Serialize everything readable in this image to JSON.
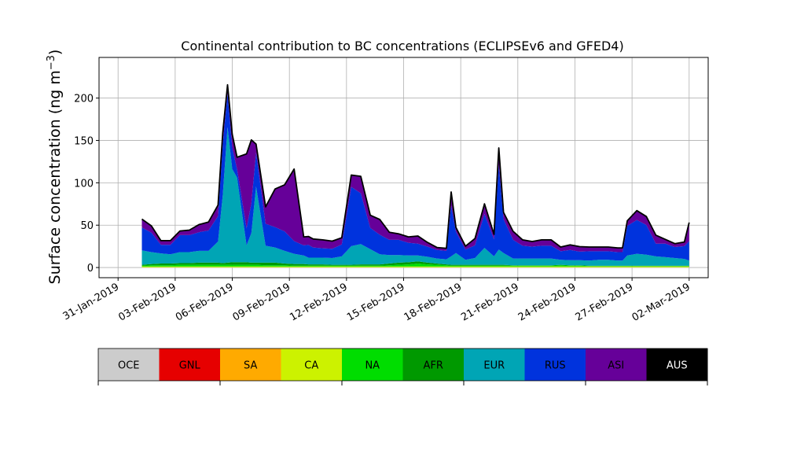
{
  "chart_data": {
    "type": "area",
    "stacked": true,
    "title": "Continental contribution to BC concentrations (ECLIPSEv6 and GFED4)",
    "ylabel": "Surface concentration (ng m",
    "ylabel_superscript": "−3",
    "ylabel_suffix": ")",
    "xlabel": "",
    "xlim": [
      "2019-01-30",
      "2019-03-03"
    ],
    "ylim": [
      -12,
      248
    ],
    "grid": true,
    "x_ticks": [
      "2019-01-31",
      "2019-02-03",
      "2019-02-06",
      "2019-02-09",
      "2019-02-12",
      "2019-02-15",
      "2019-02-18",
      "2019-02-21",
      "2019-02-24",
      "2019-02-27",
      "2019-03-02"
    ],
    "x_tick_labels": [
      "31-Jan-2019",
      "03-Feb-2019",
      "06-Feb-2019",
      "09-Feb-2019",
      "12-Feb-2019",
      "15-Feb-2019",
      "18-Feb-2019",
      "21-Feb-2019",
      "24-Feb-2019",
      "27-Feb-2019",
      "02-Mar-2019"
    ],
    "y_ticks": [
      0,
      50,
      100,
      150,
      200
    ],
    "y_tick_labels": [
      "0",
      "50",
      "100",
      "150",
      "200"
    ],
    "x": [
      "2019-02-01 06:00",
      "2019-02-01 18:00",
      "2019-02-02 06:00",
      "2019-02-02 18:00",
      "2019-02-03 06:00",
      "2019-02-03 18:00",
      "2019-02-04 06:00",
      "2019-02-04 18:00",
      "2019-02-05 06:00",
      "2019-02-05 12:00",
      "2019-02-05 18:00",
      "2019-02-06 00:00",
      "2019-02-06 06:00",
      "2019-02-06 18:00",
      "2019-02-07 00:00",
      "2019-02-07 06:00",
      "2019-02-07 18:00",
      "2019-02-08 06:00",
      "2019-02-08 18:00",
      "2019-02-09 06:00",
      "2019-02-09 18:00",
      "2019-02-10 00:00",
      "2019-02-10 06:00",
      "2019-02-10 18:00",
      "2019-02-11 06:00",
      "2019-02-11 18:00",
      "2019-02-12 06:00",
      "2019-02-12 18:00",
      "2019-02-13 06:00",
      "2019-02-13 18:00",
      "2019-02-14 06:00",
      "2019-02-14 18:00",
      "2019-02-15 06:00",
      "2019-02-15 18:00",
      "2019-02-16 06:00",
      "2019-02-16 18:00",
      "2019-02-17 06:00",
      "2019-02-17 12:00",
      "2019-02-17 18:00",
      "2019-02-18 06:00",
      "2019-02-18 18:00",
      "2019-02-19 06:00",
      "2019-02-19 18:00",
      "2019-02-20 00:00",
      "2019-02-20 06:00",
      "2019-02-20 18:00",
      "2019-02-21 06:00",
      "2019-02-21 18:00",
      "2019-02-22 06:00",
      "2019-02-22 18:00",
      "2019-02-23 06:00",
      "2019-02-23 18:00",
      "2019-02-24 06:00",
      "2019-02-24 18:00",
      "2019-02-25 06:00",
      "2019-02-25 18:00",
      "2019-02-26 06:00",
      "2019-02-26 12:00",
      "2019-02-26 18:00",
      "2019-02-27 06:00",
      "2019-02-27 18:00",
      "2019-02-28 06:00",
      "2019-02-28 18:00",
      "2019-03-01 06:00",
      "2019-03-01 18:00",
      "2019-03-02 00:00"
    ],
    "series": [
      {
        "name": "OCE",
        "color": "#cccccc",
        "values": [
          0.2,
          0.2,
          0.2,
          0.2,
          0.2,
          0.2,
          0.2,
          0.2,
          0.2,
          0.2,
          0.2,
          0.2,
          0.2,
          0.2,
          0.2,
          0.2,
          0.2,
          0.2,
          0.2,
          0.2,
          0.2,
          0.2,
          0.2,
          0.2,
          0.2,
          0.2,
          0.2,
          0.2,
          0.2,
          0.2,
          0.2,
          0.2,
          0.2,
          0.2,
          0.2,
          0.2,
          0.2,
          0.2,
          0.2,
          0.2,
          0.2,
          0.2,
          0.2,
          0.2,
          0.2,
          0.2,
          0.2,
          0.2,
          0.2,
          0.2,
          0.2,
          0.2,
          0.2,
          0.2,
          0.2,
          0.2,
          0.2,
          0.2,
          0.2,
          0.2,
          0.2,
          0.2,
          0.2,
          0.2,
          0.2,
          0.2
        ]
      },
      {
        "name": "GNL",
        "color": "#e60000",
        "values": [
          0,
          0,
          0,
          0,
          0,
          0,
          0,
          0,
          0,
          0,
          0,
          0,
          0,
          0,
          0,
          0,
          0,
          0,
          0,
          0,
          0,
          0,
          0,
          0,
          0,
          0,
          0,
          0,
          0,
          0,
          0,
          0,
          0,
          0,
          0,
          0,
          0,
          0,
          0,
          0,
          0,
          0,
          0,
          0,
          0,
          0,
          0,
          0,
          0,
          0,
          0,
          0,
          0,
          0,
          0,
          0,
          0,
          0,
          0,
          0,
          0,
          0,
          0,
          0,
          0,
          0
        ]
      },
      {
        "name": "SA",
        "color": "#ffaa00",
        "values": [
          0,
          0,
          0,
          0,
          0,
          0,
          0,
          0,
          0,
          0,
          0,
          0,
          0,
          0,
          0,
          0,
          0,
          0,
          0,
          0,
          0,
          0,
          0,
          0,
          0,
          0,
          0,
          0,
          0,
          0,
          0,
          0,
          0,
          0,
          0,
          0,
          0,
          0,
          0,
          0,
          0,
          0,
          0,
          0,
          0,
          0,
          0,
          0,
          0,
          0,
          0,
          0,
          0,
          0,
          0,
          0,
          0,
          0,
          0,
          0,
          0,
          0,
          0,
          0,
          0,
          0
        ]
      },
      {
        "name": "CA",
        "color": "#ccf200",
        "values": [
          1.0,
          1.0,
          1.0,
          1.0,
          1.0,
          1.0,
          1.0,
          1.0,
          1.0,
          1.0,
          1.0,
          1.0,
          1.0,
          1.0,
          1.0,
          1.0,
          1.0,
          1.0,
          1.0,
          1.0,
          1.0,
          1.0,
          1.0,
          1.0,
          1.0,
          1.0,
          1.0,
          1.0,
          1.0,
          1.0,
          1.0,
          1.0,
          1.0,
          1.0,
          1.0,
          1.0,
          1.0,
          1.0,
          1.0,
          1.0,
          1.0,
          1.0,
          1.0,
          1.0,
          1.0,
          1.0,
          1.0,
          1.0,
          1.0,
          1.0,
          1.0,
          1.0,
          1.0,
          1.0,
          1.0,
          1.0,
          1.0,
          1.0,
          1.0,
          1.0,
          1.0,
          1.0,
          1.0,
          1.0,
          1.0,
          1.0
        ]
      },
      {
        "name": "NA",
        "color": "#00dd00",
        "values": [
          1.0,
          1.5,
          1.5,
          1.5,
          2.0,
          2.0,
          2.0,
          2.0,
          2.0,
          2.0,
          2.0,
          2.0,
          2.0,
          2.0,
          2.0,
          2.0,
          1.5,
          1.5,
          1.5,
          1.0,
          1.0,
          1.0,
          1.0,
          1.0,
          1.0,
          1.0,
          1.0,
          1.0,
          1.0,
          1.0,
          1.5,
          2.0,
          2.5,
          3.5,
          2.5,
          2.0,
          1.5,
          1.0,
          1.0,
          1.0,
          1.0,
          1.0,
          1.0,
          1.0,
          1.0,
          1.0,
          1.0,
          1.0,
          1.0,
          1.0,
          1.5,
          1.0,
          1.0,
          0.5,
          0.5,
          0.5,
          0.5,
          0.5,
          0.5,
          0.5,
          0.5,
          0.5,
          0.5,
          0.5,
          0.5,
          0.5
        ]
      },
      {
        "name": "AFR",
        "color": "#009900",
        "values": [
          1.0,
          1.5,
          2.0,
          2.0,
          2.0,
          2.0,
          2.5,
          2.5,
          2.5,
          2.0,
          2.5,
          3.0,
          3.0,
          3.0,
          2.5,
          2.5,
          3.0,
          3.0,
          2.0,
          2.0,
          2.0,
          1.5,
          1.5,
          1.5,
          1.0,
          1.0,
          1.0,
          1.5,
          1.5,
          1.5,
          2.0,
          2.5,
          2.5,
          2.5,
          2.0,
          1.5,
          1.0,
          1.0,
          1.0,
          1.0,
          1.0,
          1.0,
          1.0,
          1.0,
          1.0,
          0.5,
          0.5,
          0.5,
          0.5,
          0.5,
          0.5,
          0.5,
          0.5,
          0.5,
          0.5,
          0.5,
          0.5,
          0.5,
          0.5,
          0.5,
          0.5,
          0.5,
          0.5,
          0.5,
          0.5,
          0.5
        ]
      },
      {
        "name": "EUR",
        "color": "#00a5b5",
        "values": [
          17,
          14,
          12,
          11,
          13,
          13,
          14,
          14,
          25,
          80,
          160,
          110,
          100,
          20,
          35,
          90,
          20,
          18,
          15,
          12,
          10,
          8,
          8,
          8,
          8,
          10,
          22,
          24,
          18,
          12,
          10,
          9,
          8,
          7,
          7,
          6,
          6,
          10,
          14,
          6,
          8,
          20,
          10,
          18,
          14,
          8,
          8,
          8,
          8,
          8,
          6,
          6,
          6,
          6,
          7,
          7,
          6,
          6,
          12,
          14,
          13,
          11,
          10,
          9,
          8,
          6
        ]
      },
      {
        "name": "RUS",
        "color": "#0033dd",
        "values": [
          27,
          23,
          10,
          11,
          20,
          20,
          22,
          24,
          30,
          60,
          40,
          25,
          10,
          20,
          35,
          40,
          26,
          24,
          23,
          15,
          12,
          15,
          12,
          11,
          11,
          14,
          70,
          60,
          25,
          23,
          18,
          18,
          15,
          14,
          12,
          10,
          10,
          60,
          25,
          12,
          15,
          40,
          20,
          100,
          40,
          22,
          15,
          14,
          15,
          15,
          10,
          12,
          10,
          11,
          10,
          10,
          10,
          10,
          35,
          40,
          35,
          15,
          16,
          13,
          15,
          23
        ]
      },
      {
        "name": "ASI",
        "color": "#660099",
        "values": [
          10,
          8,
          5,
          5,
          5,
          6,
          9,
          10,
          13,
          14,
          10,
          16,
          14,
          88,
          75,
          10,
          20,
          45,
          55,
          85,
          10,
          10,
          10,
          10,
          9,
          8,
          14,
          20,
          15,
          18,
          9,
          7,
          7,
          9,
          5,
          3,
          3,
          16,
          5,
          4,
          8,
          12,
          6,
          20,
          8,
          10,
          7,
          6,
          7,
          7,
          5,
          6,
          6,
          5,
          5,
          5,
          5,
          5,
          6,
          11,
          10,
          10,
          5,
          4,
          5,
          22
        ]
      },
      {
        "name": "AUS",
        "color": "#000000",
        "values": [
          0,
          0,
          0,
          0,
          0,
          0,
          0,
          0,
          0,
          0,
          0,
          0,
          0,
          0,
          0,
          0,
          0,
          0,
          0,
          0,
          0,
          0,
          0,
          0,
          0,
          0,
          0,
          0,
          0,
          0,
          0,
          0,
          0,
          0,
          0,
          0,
          0,
          0,
          0,
          0,
          0,
          0,
          0,
          0,
          0,
          0,
          0,
          0,
          0,
          0,
          0,
          0,
          0,
          0,
          0,
          0,
          0,
          0,
          0,
          0,
          0,
          0,
          0,
          0,
          0,
          0
        ]
      }
    ],
    "legend_position": "bottom",
    "legend_entries": [
      {
        "label": "OCE",
        "color": "#cccccc"
      },
      {
        "label": "GNL",
        "color": "#e60000"
      },
      {
        "label": "SA",
        "color": "#ffaa00"
      },
      {
        "label": "CA",
        "color": "#ccf200"
      },
      {
        "label": "NA",
        "color": "#00dd00"
      },
      {
        "label": "AFR",
        "color": "#009900"
      },
      {
        "label": "EUR",
        "color": "#00a5b5"
      },
      {
        "label": "RUS",
        "color": "#0033dd"
      },
      {
        "label": "ASI",
        "color": "#660099"
      },
      {
        "label": "AUS",
        "color": "#000000"
      }
    ],
    "legend_text_colors": {
      "AUS": "#ffffff",
      "default": "#000000"
    }
  }
}
